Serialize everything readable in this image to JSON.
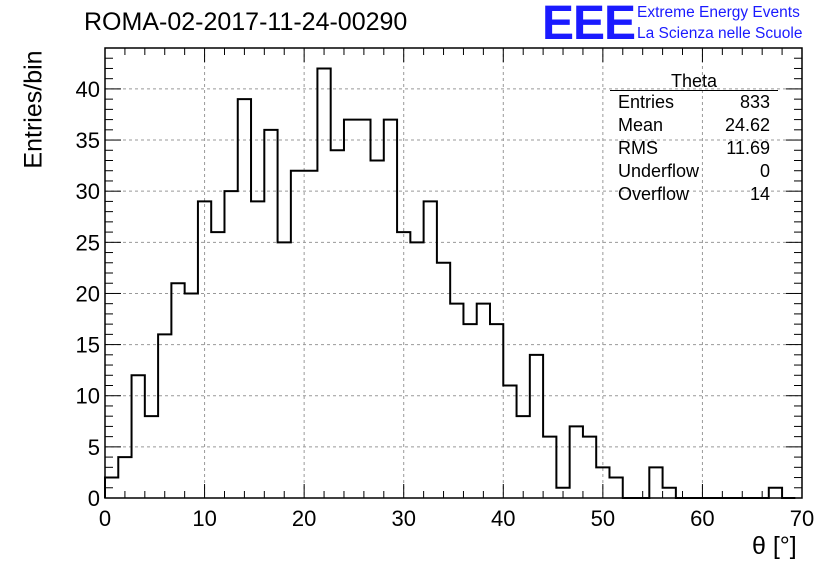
{
  "title": "ROMA-02-2017-11-24-00290",
  "logo": {
    "mark": "EEE",
    "line1": "Extreme Energy Events",
    "line2": "La Scienza nelle Scuole",
    "color": "#1a1aff"
  },
  "stats_box": {
    "title": "Theta",
    "rows": [
      {
        "label": "Entries",
        "value": "833"
      },
      {
        "label": "Mean",
        "value": "24.62"
      },
      {
        "label": "RMS",
        "value": "11.69"
      },
      {
        "label": "Underflow",
        "value": "0"
      },
      {
        "label": "Overflow",
        "value": "14"
      }
    ]
  },
  "chart_data": {
    "type": "histogram",
    "title": "ROMA-02-2017-11-24-00290",
    "xlabel": "θ [°]",
    "ylabel": "Entries/bin",
    "xlim": [
      0,
      70
    ],
    "ylim": [
      0,
      44
    ],
    "bin_width": 1.3333,
    "x_ticks": [
      0,
      10,
      20,
      30,
      40,
      50,
      60,
      70
    ],
    "y_ticks": [
      0,
      5,
      10,
      15,
      20,
      25,
      30,
      35,
      40
    ],
    "grid": true,
    "values": [
      2,
      4,
      12,
      8,
      16,
      21,
      20,
      29,
      26,
      30,
      39,
      29,
      36,
      25,
      32,
      32,
      42,
      34,
      37,
      37,
      33,
      37,
      26,
      25,
      29,
      23,
      19,
      17,
      19,
      17,
      11,
      8,
      14,
      6,
      1,
      7,
      6,
      3,
      2,
      0,
      0,
      3,
      1,
      0,
      0,
      0,
      0,
      0,
      0,
      0,
      1,
      0
    ]
  }
}
